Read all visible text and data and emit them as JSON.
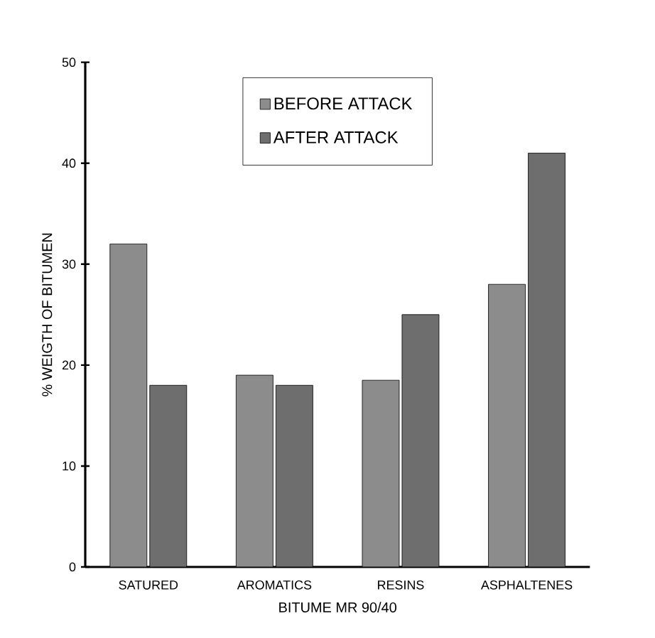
{
  "chart_data": {
    "type": "bar",
    "xlabel": "BITUME MR 90/40",
    "ylabel": "% WEIGTH OF BITUMEN",
    "categories": [
      "SATURED",
      "AROMATICS",
      "RESINS",
      "ASPHALTENES"
    ],
    "series": [
      {
        "name": "BEFORE ATTACK",
        "color": "#8c8c8c",
        "values": [
          32,
          19,
          18.5,
          28
        ]
      },
      {
        "name": "AFTER ATTACK",
        "color": "#6e6e6e",
        "values": [
          18,
          18,
          25,
          41
        ]
      }
    ],
    "ylim": [
      0,
      50
    ],
    "yticks": [
      0,
      10,
      20,
      30,
      40,
      50
    ],
    "legend": "top"
  }
}
